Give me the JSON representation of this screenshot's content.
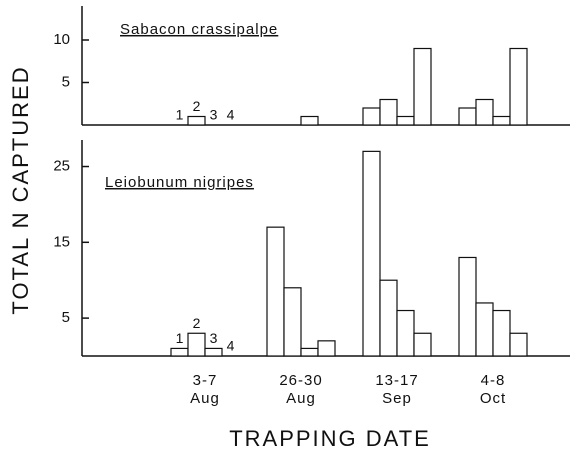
{
  "chart_data": [
    {
      "type": "bar",
      "title": "Sabacon crassipalpe",
      "series": [
        {
          "name": "1",
          "color": "#ffffff",
          "values": [
            0,
            0,
            2,
            2
          ]
        },
        {
          "name": "2",
          "color": "#ffffff",
          "values": [
            1,
            0,
            3,
            3
          ]
        },
        {
          "name": "3",
          "color": "#ffffff",
          "values": [
            0,
            1,
            1,
            1
          ]
        },
        {
          "name": "4",
          "color": "#ffffff",
          "values": [
            0,
            0,
            9,
            9
          ]
        }
      ],
      "ylim": [
        0,
        14
      ],
      "yticks": [
        5,
        10
      ]
    },
    {
      "type": "bar",
      "title": "Leiobunum nigripes",
      "categories": [
        "3-7 Aug",
        "26-30 Aug",
        "13-17 Sep",
        "4-8 Oct"
      ],
      "series": [
        {
          "name": "1",
          "color": "#ffffff",
          "values": [
            1,
            17,
            27,
            13
          ]
        },
        {
          "name": "2",
          "color": "#ffffff",
          "values": [
            3,
            9,
            10,
            7
          ]
        },
        {
          "name": "3",
          "color": "#ffffff",
          "values": [
            1,
            1,
            6,
            6
          ]
        },
        {
          "name": "4",
          "color": "#ffffff",
          "values": [
            0,
            2,
            3,
            3
          ]
        }
      ],
      "ylim": [
        0,
        28.5
      ],
      "yticks": [
        5,
        15,
        25
      ],
      "xlabel": "TRAPPING DATE",
      "ylabel": "TOTAL N CAPTURED"
    }
  ]
}
